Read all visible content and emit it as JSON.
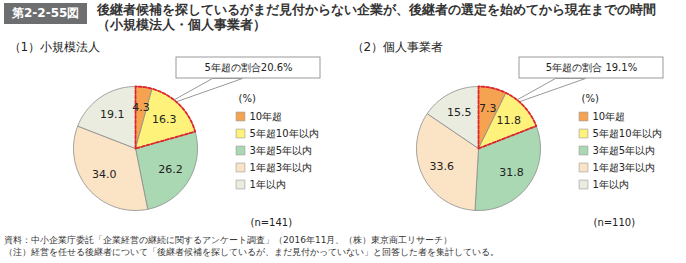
{
  "figure_label": "第2-2-55図",
  "title": "後継者候補を探しているがまだ見付からない企業が、後継者の選定を始めてから現在までの時間（小規模法人・個人事業者）",
  "chart_data": [
    {
      "type": "pie",
      "title": "（1）小規模法人",
      "categories": [
        "10年超",
        "5年超10年以内",
        "3年超5年以内",
        "1年超3年以内",
        "1年以内"
      ],
      "values": [
        4.3,
        16.3,
        26.2,
        34.0,
        19.1
      ],
      "value_labels": [
        "4.3",
        "16.3",
        "26.2",
        "34.0",
        "19.1"
      ],
      "colors": [
        "#f5a350",
        "#fff27a",
        "#a9d8b3",
        "#fbe3c6",
        "#e9ecdf"
      ],
      "data_labels": true,
      "legend": "right",
      "unit": "(%)",
      "annotation": "5年超の割合20.6%",
      "n_label": "(n=141)"
    },
    {
      "type": "pie",
      "title": "（2）個人事業者",
      "categories": [
        "10年超",
        "5年超10年以内",
        "3年超5年以内",
        "1年超3年以内",
        "1年以内"
      ],
      "values": [
        7.3,
        11.8,
        31.8,
        33.6,
        15.5
      ],
      "value_labels": [
        "7.3",
        "11.8",
        "31.8",
        "33.6",
        "15.5"
      ],
      "colors": [
        "#f5a350",
        "#fff27a",
        "#a9d8b3",
        "#fbe3c6",
        "#e9ecdf"
      ],
      "data_labels": true,
      "legend": "right",
      "unit": "(%)",
      "annotation": "5年超の割合 19.1%",
      "n_label": "(n=110)"
    }
  ],
  "notes": [
    "資料：中小企業庁委託「企業経営の継続に関するアンケート調査」（2016年11月、（株）東京商工リサーチ）",
    "（注）経営を任せる後継者について「後継者候補を探しているが、まだ見付かっていない」と回答した者を集計している。"
  ]
}
